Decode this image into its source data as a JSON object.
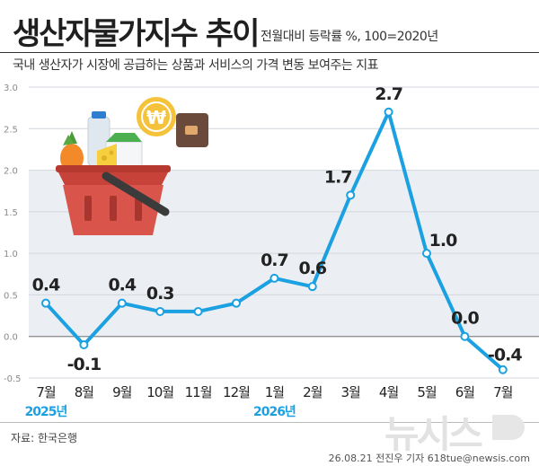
{
  "header": {
    "title": "생산자물가지수 추이",
    "subtitle": "전월대비 등락률 %, 100=2020년",
    "description": "국내 생산자가 시장에 공급하는 상품과 서비스의 가격 변동 보여주는 지표"
  },
  "footer": {
    "source": "자료: 한국은행",
    "credit": "26.08.21 전진우 기자 618tue@newsis.com",
    "watermark": "뉴시스"
  },
  "colors": {
    "line": "#1ba1e2",
    "band": "#ebeef2",
    "year_label": "#1ba1e2"
  },
  "chart_data": {
    "type": "line",
    "categories": [
      "7월",
      "8월",
      "9월",
      "10월",
      "11월",
      "12월",
      "1월",
      "2월",
      "3월",
      "4월",
      "5월",
      "6월",
      "7월"
    ],
    "values": [
      0.4,
      -0.1,
      0.4,
      0.3,
      0.3,
      0.4,
      0.7,
      0.6,
      1.7,
      2.7,
      1.0,
      0.0,
      -0.4
    ],
    "data_labels": [
      "0.4",
      "-0.1",
      "0.4",
      "0.3",
      "",
      "",
      "0.7",
      "0.6",
      "1.7",
      "2.7",
      "1.0",
      "0.0",
      "-0.4"
    ],
    "year_labels": [
      {
        "index": 0,
        "text": "2025년"
      },
      {
        "index": 6,
        "text": "2026년"
      }
    ],
    "y_ticks": [
      "3.0",
      "2.5",
      "2.0",
      "1.5",
      "1.0",
      "0.5",
      "0.0",
      "-0.5"
    ],
    "ylim": [
      -0.5,
      3.0
    ],
    "grid": true
  }
}
